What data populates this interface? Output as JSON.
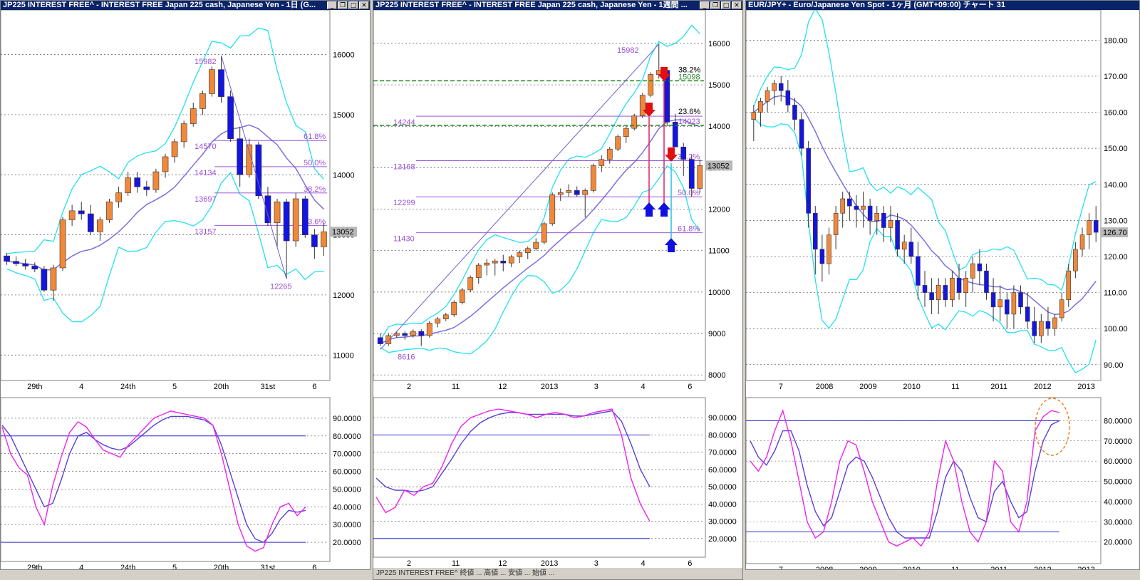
{
  "windows": [
    {
      "title": "JP225 INTEREST FREE^ - INTEREST FREE Japan 225 cash, Japanese Yen - 1日 (G...",
      "price_axis": [
        "16000",
        "15000",
        "14000",
        "13000",
        "12000",
        "11000"
      ],
      "current_price": "13052",
      "x_labels": [
        "29th",
        "4",
        "24th",
        "5",
        "20th",
        "31st",
        "6"
      ],
      "fib_labels": [
        "15982",
        "14570",
        "14134",
        "13697",
        "13157",
        "12265"
      ],
      "fib_pcts": [
        "61.8%",
        "50.0%",
        "38.2%",
        "23.6%"
      ],
      "osc_axis": [
        "90.0000",
        "80.0000",
        "70.0000",
        "60.0000",
        "50.0000",
        "40.0000",
        "30.0000",
        "20.0000"
      ]
    },
    {
      "title": "JP225 INTEREST FREE^ - INTEREST FREE Japan 225 cash, Japanese Yen - 1週間 ...",
      "price_axis": [
        "16000",
        "15000",
        "14000",
        "13000",
        "12000",
        "11000",
        "10000",
        "9000",
        "8000"
      ],
      "current_price": "13052",
      "x_labels": [
        "2",
        "11",
        "12",
        "2013",
        "3",
        "4",
        "6"
      ],
      "fib_labels": [
        "15982",
        "14244",
        "13168",
        "12299",
        "11430",
        "8616"
      ],
      "fib_pcts": [
        "38.2%",
        "50.0%",
        "61.8%"
      ],
      "fib_pcts2": [
        "38.2%",
        "15098",
        "23.6%",
        "14023"
      ],
      "osc_axis": [
        "90.0000",
        "80.0000",
        "70.0000",
        "60.0000",
        "50.0000",
        "40.0000",
        "30.0000",
        "20.0000"
      ],
      "bottom_text": "JP225 INTEREST FREE^ 終値 ... 高値 ... 安値 ... 始値 ..."
    },
    {
      "title": "EUR/JPY+ - Euro/Japanese Yen Spot - 1ヶ月 (GMT+09:00)  チャート 31",
      "price_axis": [
        "180.00",
        "170.00",
        "160.00",
        "150.00",
        "140.00",
        "130.00",
        "120.00",
        "110.00",
        "100.00",
        "90.00"
      ],
      "current_price": "126.70",
      "x_labels": [
        "7",
        "2008",
        "2009",
        "2010",
        "11",
        "2011",
        "2012",
        "2013"
      ],
      "osc_axis": [
        "80.0000",
        "70.0000",
        "60.0000",
        "50.0000",
        "40.0000",
        "30.0000",
        "20.0000"
      ]
    }
  ],
  "chart_data": [
    {
      "type": "candlestick",
      "chart": "JP225 daily",
      "ylim": [
        10600,
        16600
      ],
      "candles": [
        [
          12650,
          12700,
          12500,
          12560
        ],
        [
          12560,
          12640,
          12480,
          12520
        ],
        [
          12520,
          12600,
          12420,
          12480
        ],
        [
          12480,
          12540,
          12380,
          12430
        ],
        [
          12430,
          12480,
          12050,
          12080
        ],
        [
          12080,
          12500,
          11900,
          12450
        ],
        [
          12450,
          13300,
          12400,
          13250
        ],
        [
          13250,
          13500,
          13150,
          13400
        ],
        [
          13400,
          13550,
          13250,
          13350
        ],
        [
          13350,
          13500,
          13000,
          13050
        ],
        [
          13050,
          13300,
          12900,
          13250
        ],
        [
          13250,
          13600,
          13200,
          13550
        ],
        [
          13550,
          13800,
          13450,
          13700
        ],
        [
          13700,
          14050,
          13650,
          13950
        ],
        [
          13950,
          14050,
          13700,
          13800
        ],
        [
          13800,
          13900,
          13650,
          13750
        ],
        [
          13750,
          14100,
          13700,
          14050
        ],
        [
          14050,
          14350,
          13950,
          14300
        ],
        [
          14300,
          14600,
          14200,
          14550
        ],
        [
          14550,
          14900,
          14450,
          14850
        ],
        [
          14850,
          15200,
          14800,
          15100
        ],
        [
          15100,
          15400,
          15000,
          15350
        ],
        [
          15350,
          15800,
          15300,
          15750
        ],
        [
          15750,
          15982,
          15200,
          15300
        ],
        [
          15300,
          15400,
          14550,
          14600
        ],
        [
          14600,
          14800,
          13800,
          14000
        ],
        [
          14000,
          14600,
          13950,
          14500
        ],
        [
          14500,
          14550,
          13600,
          13650
        ],
        [
          13650,
          13800,
          13150,
          13200
        ],
        [
          13200,
          13600,
          12800,
          13550
        ],
        [
          13550,
          13600,
          12265,
          12900
        ],
        [
          12900,
          13700,
          12800,
          13600
        ],
        [
          13600,
          13650,
          12950,
          13000
        ],
        [
          13000,
          13100,
          12600,
          12800
        ],
        [
          12800,
          13200,
          12650,
          13052
        ]
      ],
      "fib_levels": [
        15982,
        14570,
        14134,
        13697,
        13157,
        12265
      ],
      "oscillator": {
        "ylim": [
          10,
          100
        ],
        "levels": [
          80,
          20
        ],
        "fast": [
          85,
          70,
          62,
          58,
          40,
          30,
          52,
          68,
          82,
          88,
          85,
          78,
          72,
          70,
          68,
          75,
          80,
          85,
          90,
          92,
          94,
          93,
          92,
          91,
          90,
          86,
          70,
          50,
          30,
          18,
          15,
          17,
          30,
          40,
          42,
          35,
          40
        ],
        "slow": [
          86,
          80,
          70,
          60,
          50,
          40,
          42,
          55,
          70,
          80,
          82,
          78,
          75,
          73,
          72,
          74,
          78,
          82,
          86,
          89,
          91,
          91,
          91,
          90,
          89,
          86,
          75,
          60,
          45,
          30,
          22,
          20,
          25,
          33,
          38,
          37,
          38
        ]
      }
    },
    {
      "type": "candlestick",
      "chart": "JP225 weekly",
      "ylim": [
        7900,
        16600
      ],
      "candles": [
        [
          8900,
          9000,
          8700,
          8750
        ],
        [
          8750,
          9000,
          8700,
          8950
        ],
        [
          8950,
          9050,
          8900,
          9000
        ],
        [
          9000,
          9050,
          8850,
          8950
        ],
        [
          8950,
          9100,
          8900,
          9050
        ],
        [
          9050,
          9100,
          8700,
          8950
        ],
        [
          8950,
          9300,
          8900,
          9250
        ],
        [
          9250,
          9400,
          9150,
          9350
        ],
        [
          9350,
          9500,
          9300,
          9450
        ],
        [
          9450,
          9800,
          9400,
          9750
        ],
        [
          9750,
          10100,
          9700,
          10050
        ],
        [
          10050,
          10400,
          10000,
          10350
        ],
        [
          10350,
          10700,
          10200,
          10650
        ],
        [
          10650,
          10800,
          10400,
          10700
        ],
        [
          10700,
          10800,
          10400,
          10750
        ],
        [
          10750,
          10900,
          10500,
          10700
        ],
        [
          10700,
          10900,
          10600,
          10850
        ],
        [
          10850,
          11000,
          10700,
          10950
        ],
        [
          10950,
          11100,
          10800,
          11050
        ],
        [
          11050,
          11300,
          11000,
          11200
        ],
        [
          11200,
          11700,
          11150,
          11650
        ],
        [
          11650,
          12400,
          11600,
          12350
        ],
        [
          12350,
          12500,
          12200,
          12400
        ],
        [
          12400,
          12600,
          12300,
          12450
        ],
        [
          12450,
          12550,
          12300,
          12350
        ],
        [
          12350,
          12500,
          11800,
          12450
        ],
        [
          12450,
          13100,
          12400,
          13050
        ],
        [
          13050,
          13300,
          12900,
          13200
        ],
        [
          13200,
          13500,
          13100,
          13450
        ],
        [
          13450,
          13800,
          13400,
          13750
        ],
        [
          13750,
          14000,
          13600,
          13950
        ],
        [
          13950,
          14300,
          13900,
          14250
        ],
        [
          14250,
          14800,
          14200,
          14750
        ],
        [
          14750,
          15300,
          14700,
          15250
        ],
        [
          15250,
          15982,
          15150,
          15350
        ],
        [
          15350,
          15400,
          14000,
          14100
        ],
        [
          14100,
          14300,
          13500,
          13500
        ],
        [
          13500,
          13600,
          12800,
          13200
        ],
        [
          13200,
          13300,
          12300,
          12500
        ],
        [
          12500,
          13200,
          12400,
          13052
        ]
      ],
      "fib_levels": [
        15982,
        14244,
        13168,
        12299,
        11430,
        8616
      ],
      "oscillator": {
        "ylim": [
          10,
          100
        ],
        "levels": [
          80,
          20
        ],
        "fast": [
          44,
          35,
          38,
          48,
          45,
          50,
          52,
          62,
          75,
          85,
          90,
          92,
          94,
          95,
          94,
          93,
          92,
          90,
          92,
          93,
          92,
          90,
          91,
          93,
          94,
          95,
          80,
          55,
          40,
          30
        ],
        "slow": [
          55,
          50,
          48,
          48,
          47,
          48,
          50,
          58,
          66,
          75,
          82,
          87,
          90,
          92,
          93,
          93,
          92,
          92,
          92,
          92,
          92,
          91,
          91,
          92,
          93,
          94,
          88,
          75,
          60,
          50
        ]
      }
    },
    {
      "type": "candlestick",
      "chart": "EURJPY monthly",
      "ylim": [
        86,
        186
      ],
      "candles": [
        [
          158,
          162,
          152,
          160
        ],
        [
          160,
          164,
          156,
          163
        ],
        [
          163,
          167,
          160,
          166
        ],
        [
          166,
          169,
          162,
          168
        ],
        [
          168,
          170,
          163,
          166
        ],
        [
          166,
          169,
          160,
          162
        ],
        [
          162,
          164,
          155,
          158
        ],
        [
          158,
          160,
          148,
          150
        ],
        [
          150,
          152,
          128,
          132
        ],
        [
          132,
          134,
          115,
          122
        ],
        [
          122,
          126,
          113,
          118
        ],
        [
          118,
          128,
          115,
          126
        ],
        [
          126,
          134,
          122,
          132
        ],
        [
          132,
          138,
          128,
          136
        ],
        [
          136,
          138,
          130,
          134
        ],
        [
          134,
          137,
          128,
          133
        ],
        [
          133,
          138,
          128,
          134
        ],
        [
          134,
          136,
          126,
          130
        ],
        [
          130,
          134,
          126,
          132
        ],
        [
          132,
          134,
          124,
          128
        ],
        [
          128,
          134,
          124,
          130
        ],
        [
          130,
          132,
          120,
          122
        ],
        [
          122,
          126,
          118,
          124
        ],
        [
          124,
          128,
          118,
          120
        ],
        [
          120,
          124,
          108,
          112
        ],
        [
          112,
          116,
          106,
          110
        ],
        [
          110,
          114,
          104,
          108
        ],
        [
          108,
          114,
          104,
          112
        ],
        [
          112,
          114,
          106,
          108
        ],
        [
          108,
          116,
          106,
          114
        ],
        [
          114,
          118,
          108,
          110
        ],
        [
          110,
          116,
          106,
          114
        ],
        [
          114,
          120,
          110,
          118
        ],
        [
          118,
          122,
          112,
          116
        ],
        [
          116,
          118,
          108,
          110
        ],
        [
          110,
          114,
          102,
          106
        ],
        [
          106,
          112,
          102,
          108
        ],
        [
          108,
          110,
          100,
          104
        ],
        [
          104,
          112,
          100,
          110
        ],
        [
          110,
          112,
          104,
          106
        ],
        [
          106,
          110,
          100,
          102
        ],
        [
          102,
          106,
          96,
          98
        ],
        [
          98,
          104,
          96,
          102
        ],
        [
          102,
          106,
          98,
          100
        ],
        [
          100,
          104,
          98,
          103
        ],
        [
          103,
          110,
          102,
          108
        ],
        [
          108,
          118,
          106,
          116
        ],
        [
          116,
          124,
          114,
          122
        ],
        [
          122,
          128,
          120,
          126
        ],
        [
          126,
          132,
          122,
          130
        ],
        [
          130,
          134,
          124,
          126.7
        ]
      ],
      "oscillator": {
        "ylim": [
          10,
          90
        ],
        "levels": [
          80,
          25
        ],
        "fast": [
          60,
          55,
          62,
          75,
          85,
          70,
          50,
          30,
          22,
          25,
          40,
          60,
          70,
          68,
          55,
          40,
          30,
          20,
          18,
          20,
          22,
          18,
          25,
          50,
          70,
          60,
          40,
          25,
          20,
          30,
          60,
          55,
          30,
          25,
          40,
          75,
          82,
          85,
          84
        ],
        "slow": [
          70,
          62,
          58,
          65,
          75,
          75,
          65,
          48,
          35,
          28,
          32,
          45,
          58,
          62,
          60,
          52,
          42,
          32,
          25,
          22,
          22,
          22,
          22,
          35,
          52,
          60,
          55,
          42,
          32,
          30,
          45,
          50,
          40,
          32,
          35,
          55,
          70,
          78,
          80
        ]
      }
    }
  ]
}
